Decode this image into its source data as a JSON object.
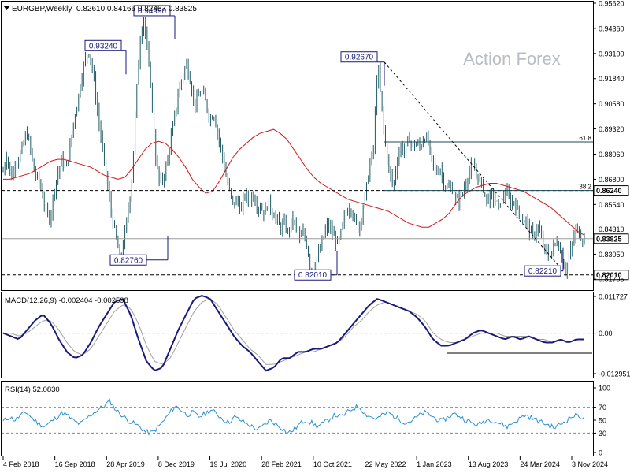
{
  "header": {
    "symbol": "EURGBP,Weekly",
    "ohlc": "0.82610 0.84166 0.82467 0.83825"
  },
  "watermark": "Action Forex",
  "chart_data": [
    {
      "type": "candlestick",
      "panel": "price",
      "x_labels": [
        "4 Feb 2018",
        "16 Sep 2018",
        "28 Apr 2019",
        "8 Dec 2019",
        "19 Jul 2020",
        "28 Feb 2021",
        "10 Oct 2021",
        "22 May 2022",
        "1 Jan 2023",
        "13 Aug 2023",
        "24 Mar 2024",
        "3 Nov 2024"
      ],
      "y_ticks": [
        "0.95620",
        "0.94360",
        "0.93100",
        "0.91840",
        "0.90580",
        "0.89320",
        "0.88060",
        "0.86800",
        "0.85540",
        "0.84310",
        "0.83050",
        "0.81795"
      ],
      "ylim": [
        0.8125,
        0.9562
      ],
      "current_price": "0.83825",
      "current_price_value": 0.83825,
      "support_level": "0.86240",
      "support_level_value": 0.8624,
      "bottom_level": "0.82010",
      "bottom_level_value": 0.8201,
      "fib_levels": [
        {
          "label": "61.8",
          "value": 0.8867
        },
        {
          "label": "38.2",
          "value": 0.8624
        }
      ],
      "annotations": [
        {
          "label": "0.93240",
          "value": 0.9324
        },
        {
          "label": "0.94990",
          "value": 0.9499
        },
        {
          "label": "0.82760",
          "value": 0.8276
        },
        {
          "label": "0.82010",
          "value": 0.8201
        },
        {
          "label": "0.92670",
          "value": 0.9267
        },
        {
          "label": "0.82210",
          "value": 0.8221
        }
      ],
      "close_path": [
        0.872,
        0.881,
        0.868,
        0.875,
        0.879,
        0.884,
        0.892,
        0.883,
        0.871,
        0.868,
        0.861,
        0.852,
        0.848,
        0.862,
        0.871,
        0.878,
        0.873,
        0.882,
        0.896,
        0.906,
        0.918,
        0.928,
        0.9324,
        0.922,
        0.905,
        0.89,
        0.875,
        0.861,
        0.848,
        0.838,
        0.8276,
        0.838,
        0.852,
        0.868,
        0.905,
        0.936,
        0.9499,
        0.931,
        0.912,
        0.88,
        0.867,
        0.868,
        0.876,
        0.888,
        0.9,
        0.912,
        0.92,
        0.926,
        0.917,
        0.905,
        0.909,
        0.912,
        0.906,
        0.898,
        0.901,
        0.891,
        0.882,
        0.871,
        0.862,
        0.855,
        0.858,
        0.852,
        0.861,
        0.857,
        0.861,
        0.855,
        0.854,
        0.851,
        0.857,
        0.851,
        0.849,
        0.843,
        0.846,
        0.841,
        0.848,
        0.845,
        0.838,
        0.841,
        0.834,
        0.8201,
        0.826,
        0.831,
        0.838,
        0.845,
        0.843,
        0.838,
        0.836,
        0.845,
        0.851,
        0.855,
        0.848,
        0.843,
        0.851,
        0.862,
        0.875,
        0.884,
        0.9267,
        0.905,
        0.885,
        0.872,
        0.864,
        0.877,
        0.885,
        0.881,
        0.889,
        0.884,
        0.886,
        0.884,
        0.89,
        0.886,
        0.877,
        0.871,
        0.874,
        0.866,
        0.863,
        0.864,
        0.858,
        0.857,
        0.862,
        0.869,
        0.874,
        0.872,
        0.868,
        0.864,
        0.857,
        0.86,
        0.858,
        0.854,
        0.858,
        0.862,
        0.856,
        0.857,
        0.852,
        0.847,
        0.848,
        0.842,
        0.839,
        0.845,
        0.838,
        0.832,
        0.829,
        0.834,
        0.837,
        0.831,
        0.8221,
        0.828,
        0.836,
        0.844,
        0.8395,
        0.83825
      ],
      "ma_path": [
        0.868,
        0.868,
        0.869,
        0.87,
        0.871,
        0.873,
        0.875,
        0.877,
        0.878,
        0.878,
        0.877,
        0.876,
        0.875,
        0.874,
        0.872,
        0.87,
        0.869,
        0.868,
        0.869,
        0.873,
        0.878,
        0.883,
        0.886,
        0.887,
        0.886,
        0.883,
        0.879,
        0.874,
        0.868,
        0.864,
        0.861,
        0.862,
        0.867,
        0.873,
        0.879,
        0.883,
        0.886,
        0.889,
        0.891,
        0.892,
        0.893,
        0.891,
        0.888,
        0.883,
        0.878,
        0.873,
        0.869,
        0.866,
        0.864,
        0.862,
        0.86,
        0.858,
        0.857,
        0.856,
        0.855,
        0.854,
        0.853,
        0.852,
        0.85,
        0.848,
        0.846,
        0.845,
        0.844,
        0.844,
        0.846,
        0.848,
        0.851,
        0.856,
        0.86,
        0.862,
        0.864,
        0.865,
        0.866,
        0.866,
        0.865,
        0.864,
        0.863,
        0.862,
        0.86,
        0.858,
        0.856,
        0.854,
        0.851,
        0.848,
        0.845,
        0.842,
        0.84
      ]
    },
    {
      "type": "line",
      "panel": "macd",
      "title": "MACD(12,26,9) -0.002404 -0.002598",
      "y_ticks": [
        "0.011727",
        "0.00",
        "-0.012951"
      ],
      "ylim": [
        -0.012951,
        0.011727
      ],
      "zero_line": 0,
      "main": [
        0.0,
        -0.001,
        -0.002,
        0.001,
        0.004,
        0.006,
        0.003,
        -0.002,
        -0.006,
        -0.008,
        -0.007,
        -0.003,
        0.002,
        0.006,
        0.01,
        0.011,
        0.006,
        -0.002,
        -0.009,
        -0.012,
        -0.011,
        -0.005,
        0.001,
        0.006,
        0.011,
        0.012,
        0.011,
        0.007,
        0.003,
        -0.001,
        -0.004,
        -0.006,
        -0.009,
        -0.012,
        -0.011,
        -0.008,
        -0.008,
        -0.006,
        -0.006,
        -0.005,
        -0.005,
        -0.004,
        -0.003,
        0.0,
        0.003,
        0.006,
        0.009,
        0.011,
        0.01,
        0.009,
        0.008,
        0.007,
        0.005,
        0.002,
        -0.002,
        -0.004,
        -0.004,
        -0.003,
        -0.002,
        0.0,
        0.001,
        0.0,
        -0.001,
        -0.002,
        -0.001,
        -0.002,
        -0.001,
        -0.002,
        -0.003,
        -0.003,
        -0.002,
        -0.003,
        -0.002,
        -0.002
      ],
      "signal": [
        0.0,
        0.0,
        -0.001,
        0.0,
        0.002,
        0.004,
        0.004,
        0.001,
        -0.003,
        -0.006,
        -0.007,
        -0.005,
        -0.001,
        0.003,
        0.007,
        0.009,
        0.008,
        0.003,
        -0.004,
        -0.009,
        -0.01,
        -0.008,
        -0.003,
        0.002,
        0.007,
        0.01,
        0.011,
        0.009,
        0.005,
        0.001,
        -0.002,
        -0.005,
        -0.007,
        -0.01,
        -0.01,
        -0.009,
        -0.008,
        -0.007,
        -0.006,
        -0.006,
        -0.005,
        -0.004,
        -0.003,
        -0.001,
        0.002,
        0.004,
        0.007,
        0.009,
        0.01,
        0.009,
        0.008,
        0.007,
        0.006,
        0.004,
        0.0,
        -0.002,
        -0.003,
        -0.003,
        -0.002,
        -0.001,
        0.0,
        0.0,
        0.0,
        -0.001,
        -0.001,
        -0.001,
        -0.001,
        -0.002,
        -0.002,
        -0.003,
        -0.002,
        -0.003,
        -0.002,
        -0.002
      ]
    },
    {
      "type": "line",
      "panel": "rsi",
      "title": "RSI(14) 52.0830",
      "y_ticks": [
        "100",
        "70",
        "50",
        "30",
        "0"
      ],
      "ylim": [
        0,
        100
      ],
      "levels": [
        70,
        30
      ],
      "values": [
        48,
        55,
        50,
        58,
        62,
        52,
        45,
        40,
        47,
        55,
        62,
        56,
        48,
        44,
        52,
        60,
        66,
        72,
        80,
        66,
        58,
        50,
        45,
        40,
        32,
        30,
        38,
        48,
        60,
        72,
        66,
        58,
        62,
        55,
        60,
        66,
        60,
        52,
        46,
        55,
        50,
        45,
        40,
        35,
        42,
        50,
        44,
        38,
        30,
        35,
        44,
        50,
        46,
        40,
        45,
        52,
        58,
        55,
        62,
        68,
        72,
        60,
        55,
        52,
        58,
        62,
        55,
        50,
        46,
        50,
        56,
        62,
        58,
        52,
        48,
        55,
        60,
        56,
        50,
        46,
        42,
        48,
        52,
        48,
        44,
        40,
        46,
        52,
        58,
        54,
        50,
        46,
        42,
        38,
        44,
        50,
        56,
        58,
        52
      ]
    }
  ]
}
